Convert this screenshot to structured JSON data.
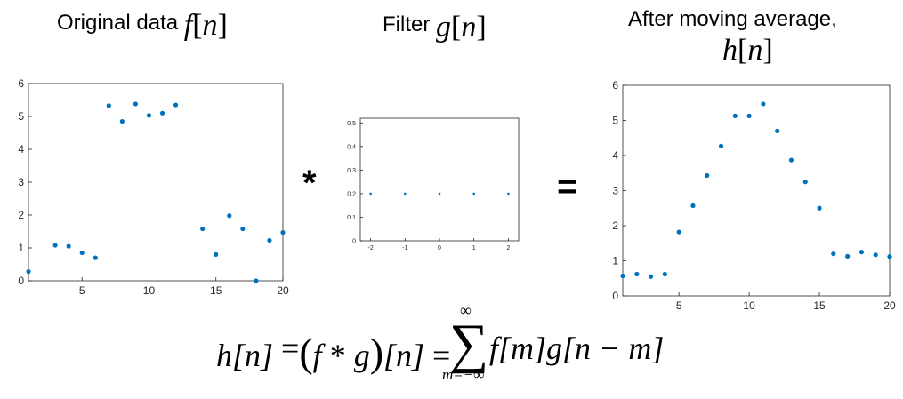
{
  "titles": {
    "left": {
      "text": "Original data",
      "fn": "f",
      "lb": "[",
      "arg": "n",
      "rb": "]"
    },
    "mid": {
      "text": "Filter",
      "fn": "g",
      "lb": "[",
      "arg": "n",
      "rb": "]"
    },
    "right": {
      "line1": "After moving average,",
      "fn": "h",
      "lb": "[",
      "arg": "n",
      "rb": "]"
    }
  },
  "operators": {
    "convolve": "*",
    "equals": "="
  },
  "formula": {
    "lhs": "h[n]",
    "eq1": "=",
    "conv_lpar": "(",
    "conv_f": "f",
    "conv_star": " * ",
    "conv_g": "g",
    "conv_rpar": ")",
    "conv_n": "[n]",
    "eq2": "=",
    "sum_symbol": "∑",
    "upper": "∞",
    "lower": "m=−∞",
    "term_f": "f",
    "term_m": "[m]",
    "term_g": "g",
    "term_nm": "[n − m]"
  },
  "colors": {
    "marker": "#0072bd",
    "axis": "#262626",
    "tick_label": "#262626"
  },
  "chart_data": [
    {
      "type": "scatter",
      "xlim": [
        1,
        20
      ],
      "ylim": [
        0,
        6
      ],
      "xticks": [
        5,
        10,
        15,
        20
      ],
      "yticks": [
        0,
        1,
        2,
        3,
        4,
        5,
        6
      ],
      "grid": false,
      "x": [
        1,
        3,
        4,
        5,
        6,
        7,
        8,
        9,
        10,
        11,
        12,
        14,
        15,
        16,
        17,
        18,
        19,
        20
      ],
      "y": [
        0.28,
        1.08,
        1.05,
        0.85,
        0.7,
        5.33,
        4.85,
        5.38,
        5.03,
        5.1,
        5.35,
        1.58,
        0.8,
        1.98,
        1.58,
        0.0,
        1.23,
        1.47
      ]
    },
    {
      "type": "scatter",
      "xlim": [
        -2.3,
        2.3
      ],
      "ylim": [
        0,
        0.52
      ],
      "xticks": [
        -2,
        -1,
        0,
        1,
        2
      ],
      "yticks": [
        0,
        0.1,
        0.2,
        0.3,
        0.4,
        0.5
      ],
      "grid": false,
      "x": [
        -2,
        -1,
        0,
        1,
        2
      ],
      "y": [
        0.2,
        0.2,
        0.2,
        0.2,
        0.2
      ]
    },
    {
      "type": "scatter",
      "xlim": [
        1,
        20
      ],
      "ylim": [
        0,
        6
      ],
      "xticks": [
        5,
        10,
        15,
        20
      ],
      "yticks": [
        0,
        1,
        2,
        3,
        4,
        5,
        6
      ],
      "grid": false,
      "x": [
        1,
        2,
        3,
        4,
        5,
        6,
        7,
        8,
        9,
        10,
        11,
        12,
        13,
        14,
        15,
        16,
        17,
        18,
        19,
        20
      ],
      "y": [
        0.57,
        0.62,
        0.55,
        0.62,
        1.82,
        2.57,
        3.43,
        4.27,
        5.13,
        5.13,
        5.47,
        4.7,
        3.87,
        3.25,
        2.5,
        1.2,
        1.13,
        1.25,
        1.17,
        1.12
      ]
    }
  ]
}
